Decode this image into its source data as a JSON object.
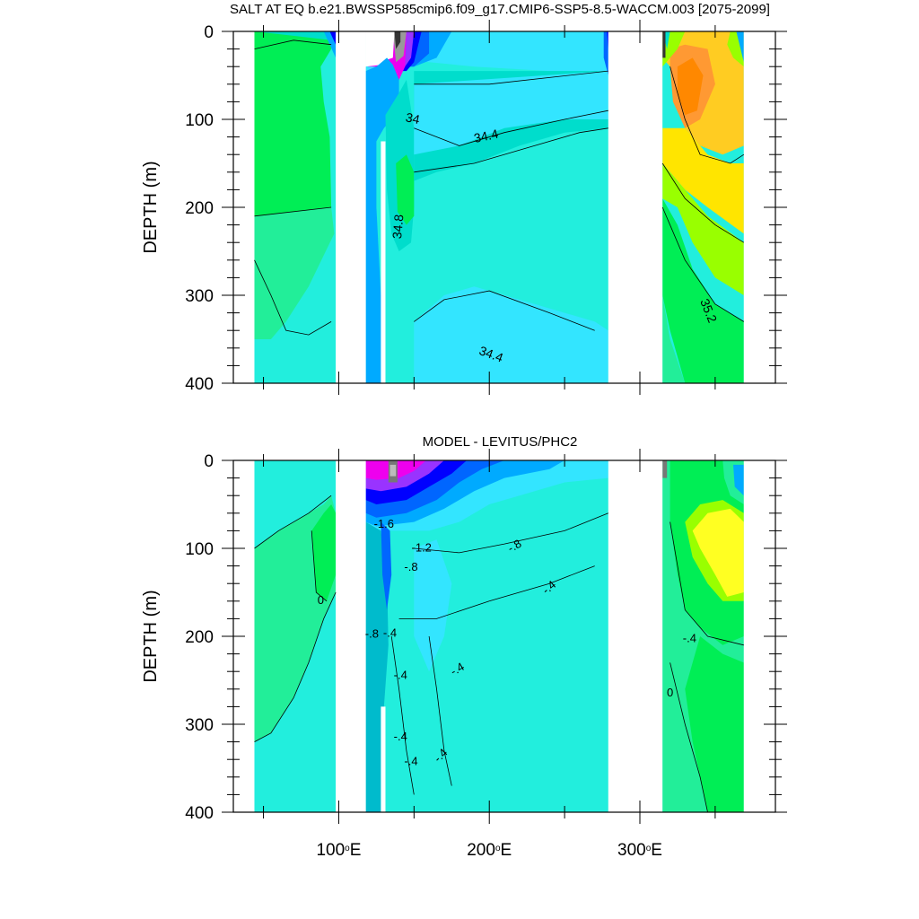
{
  "chart_data": [
    {
      "type": "heatmap",
      "title": "SALT AT EQ b.e21.BWSSP585cmip6.f09_g17.CMIP6-SSP5-8.5-WACCM.003 [2075-2099]",
      "xlabel": "",
      "ylabel": "DEPTH (m)",
      "xlim": [
        30,
        390
      ],
      "ylim": [
        0,
        400
      ],
      "y_reversed": true,
      "x_ticks": [
        {
          "value": 100,
          "label": "100",
          "unit": "E"
        },
        {
          "value": 200,
          "label": "200",
          "unit": "E"
        },
        {
          "value": 300,
          "label": "300",
          "unit": "E"
        }
      ],
      "y_ticks": [
        {
          "value": 0,
          "label": "0"
        },
        {
          "value": 100,
          "label": "100"
        },
        {
          "value": 200,
          "label": "200"
        },
        {
          "value": 300,
          "label": "300"
        },
        {
          "value": 400,
          "label": "400"
        }
      ],
      "ocean_segments": [
        [
          44,
          98
        ],
        [
          118,
          279
        ],
        [
          315,
          369
        ]
      ],
      "contour_labels": [
        {
          "text": "34",
          "x": 149,
          "y": 100,
          "rotate": 12
        },
        {
          "text": "34.4",
          "x": 198,
          "y": 120,
          "rotate": -12
        },
        {
          "text": "34.8",
          "x": 140,
          "y": 222,
          "rotate": -85
        },
        {
          "text": "34.4",
          "x": 201,
          "y": 368,
          "rotate": 20
        },
        {
          "text": "35.2",
          "x": 345,
          "y": 318,
          "rotate": 68
        }
      ],
      "colors": {
        "background": "#22eedd",
        "low_extreme": "#333333",
        "grey": "#999999",
        "magenta": "#ee00ee",
        "purple": "#9933ff",
        "blue": "#0000ff",
        "mid_blue": "#0066ff",
        "sky_blue": "#00aaff",
        "light_cyan": "#33e5ff",
        "aqua": "#00ddcc",
        "sea_green": "#22ee99",
        "green": "#00ee55",
        "lime": "#99ff00",
        "yellow": "#ffe500",
        "gold": "#ffcc22",
        "orange": "#ff9933",
        "dark_orange": "#ff8800"
      }
    },
    {
      "type": "heatmap",
      "title": "MODEL - LEVITUS/PHC2",
      "xlabel": "",
      "ylabel": "DEPTH (m)",
      "xlim": [
        30,
        390
      ],
      "ylim": [
        0,
        400
      ],
      "y_reversed": true,
      "x_ticks": [
        {
          "value": 100,
          "label": "100",
          "unit": "E"
        },
        {
          "value": 200,
          "label": "200",
          "unit": "E"
        },
        {
          "value": 300,
          "label": "300",
          "unit": "E"
        }
      ],
      "y_ticks": [
        {
          "value": 0,
          "label": "0"
        },
        {
          "value": 100,
          "label": "100"
        },
        {
          "value": 200,
          "label": "200"
        },
        {
          "value": 300,
          "label": "300"
        },
        {
          "value": 400,
          "label": "400"
        }
      ],
      "ocean_segments": [
        [
          44,
          98
        ],
        [
          118,
          279
        ],
        [
          315,
          369
        ]
      ],
      "contour_labels": [
        {
          "text": "0",
          "x": 88,
          "y": 160,
          "rotate": 0
        },
        {
          "text": "-1.6",
          "x": 130,
          "y": 73,
          "rotate": 0
        },
        {
          "text": "-1.2",
          "x": 155,
          "y": 100,
          "rotate": 0
        },
        {
          "text": "-.8",
          "x": 148,
          "y": 122,
          "rotate": 0
        },
        {
          "text": "-.8",
          "x": 217,
          "y": 98,
          "rotate": -30
        },
        {
          "text": "-.4",
          "x": 240,
          "y": 145,
          "rotate": -40
        },
        {
          "text": "-.8",
          "x": 122,
          "y": 198,
          "rotate": 0
        },
        {
          "text": "-.4",
          "x": 134,
          "y": 197,
          "rotate": 0
        },
        {
          "text": "-.4",
          "x": 141,
          "y": 245,
          "rotate": 0
        },
        {
          "text": "-.4",
          "x": 179,
          "y": 238,
          "rotate": -30
        },
        {
          "text": "-.4",
          "x": 141,
          "y": 315,
          "rotate": 0
        },
        {
          "text": "-.4",
          "x": 148,
          "y": 343,
          "rotate": 0
        },
        {
          "text": "-.4",
          "x": 168,
          "y": 336,
          "rotate": -45
        },
        {
          "text": "-.4",
          "x": 333,
          "y": 203,
          "rotate": 0
        },
        {
          "text": "0",
          "x": 320,
          "y": 265,
          "rotate": 0
        }
      ],
      "colors": {
        "background": "#22eedd",
        "low_extreme": "#777777",
        "magenta": "#ee00ee",
        "purple": "#9933ff",
        "blue": "#0000ff",
        "mid_blue": "#0066ff",
        "sky_blue": "#00aaff",
        "light_cyan": "#33e5ff",
        "sea_green": "#22ee99",
        "green": "#00ee55",
        "lime": "#99ff00",
        "yellow": "#ffff22",
        "teal": "#00bbcc"
      }
    }
  ]
}
